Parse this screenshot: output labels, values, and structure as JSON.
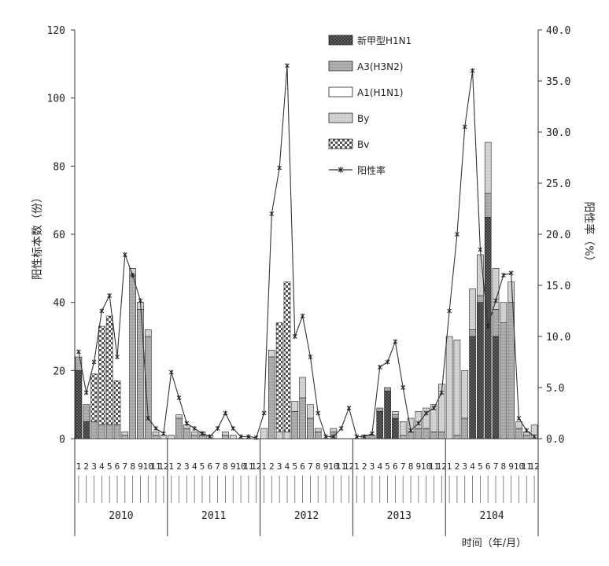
{
  "chart_data": {
    "type": "bar",
    "stacked": true,
    "xlabel": "时间（年/月）",
    "ylabel_left": "阳性标本数（份）",
    "ylabel_right": "阳性率（%）",
    "ylim_left": [
      0,
      120
    ],
    "yticks_left": [
      "0",
      "20",
      "40",
      "60",
      "80",
      "100",
      "120"
    ],
    "ylim_right": [
      0,
      40
    ],
    "yticks_right": [
      "0.0",
      "5.0",
      "10.0",
      "15.0",
      "20.0",
      "25.0",
      "30.0",
      "35.0",
      "40.0"
    ],
    "grid": false,
    "legend_position": "top-center",
    "month_labels": [
      "1",
      "2",
      "3",
      "4",
      "5",
      "6",
      "7",
      "8",
      "9",
      "10",
      "11",
      "12"
    ],
    "years": [
      "2010",
      "2011",
      "2012",
      "2013",
      "2104"
    ],
    "bar_series": [
      {
        "name": "新甲型H1N1",
        "color": "#6e6e6e",
        "pattern": "dark",
        "values": [
          20,
          5,
          0,
          0,
          0,
          0,
          0,
          0,
          0,
          0,
          0,
          0,
          0,
          0,
          0,
          0,
          0,
          0,
          0,
          0,
          0,
          0,
          0,
          0,
          0,
          0,
          0,
          0,
          0,
          0,
          0,
          0,
          0,
          0,
          0,
          0,
          0,
          0,
          0,
          8,
          14,
          6,
          0,
          0,
          0,
          0,
          0,
          0,
          0,
          0,
          0,
          30,
          40,
          65,
          30,
          0,
          0,
          0,
          0,
          0
        ]
      },
      {
        "name": "A3(H3N2)",
        "color": "#a8a8a8",
        "pattern": "medium",
        "values": [
          4,
          5,
          5,
          4,
          4,
          4,
          1,
          48,
          38,
          30,
          1,
          0,
          0,
          6,
          3,
          1,
          1,
          0,
          0,
          1,
          0,
          0,
          0,
          0,
          0,
          24,
          0,
          0,
          8,
          12,
          6,
          2,
          0,
          2,
          0,
          0,
          0,
          0,
          1,
          1,
          1,
          1,
          1,
          2,
          3,
          3,
          2,
          2,
          0,
          1,
          6,
          2,
          2,
          7,
          8,
          34,
          40,
          3,
          1,
          0
        ]
      },
      {
        "name": "A1(H1N1)",
        "color": "#ffffff",
        "pattern": "white",
        "values": [
          0,
          0,
          0,
          0,
          0,
          0,
          0,
          0,
          0,
          0,
          0,
          0,
          0,
          0,
          0,
          0,
          0,
          0,
          0,
          0,
          0,
          0,
          0,
          0,
          0,
          0,
          0,
          0,
          0,
          0,
          0,
          0,
          0,
          0,
          0,
          0,
          0,
          0,
          0,
          0,
          0,
          0,
          0,
          0,
          0,
          0,
          0,
          0,
          0,
          0,
          0,
          0,
          0,
          0,
          0,
          0,
          0,
          0,
          0,
          0
        ]
      },
      {
        "name": "By",
        "color": "#cccccc",
        "pattern": "light",
        "values": [
          0,
          0,
          0,
          0,
          0,
          0,
          1,
          2,
          2,
          2,
          1,
          1,
          1,
          1,
          1,
          1,
          1,
          1,
          0,
          1,
          1,
          0,
          0,
          0,
          3,
          2,
          2,
          2,
          3,
          6,
          4,
          1,
          0,
          1,
          0,
          0,
          0,
          1,
          0,
          0,
          0,
          1,
          4,
          4,
          5,
          6,
          8,
          14,
          30,
          28,
          14,
          12,
          12,
          15,
          12,
          6,
          6,
          2,
          1,
          4
        ]
      },
      {
        "name": "Bv",
        "color": "#d8d8d8",
        "pattern": "check",
        "values": [
          0,
          0,
          14,
          29,
          32,
          13,
          0,
          0,
          0,
          0,
          0,
          0,
          0,
          0,
          0,
          0,
          0,
          0,
          0,
          0,
          0,
          0,
          0,
          0,
          0,
          0,
          32,
          44,
          0,
          0,
          0,
          0,
          0,
          0,
          0,
          0,
          0,
          0,
          0,
          0,
          0,
          0,
          0,
          0,
          0,
          0,
          0,
          0,
          0,
          0,
          0,
          0,
          0,
          0,
          0,
          0,
          0,
          0,
          0,
          0
        ]
      }
    ],
    "line_series": {
      "name": "阳性率",
      "axis": "right",
      "values": [
        8.5,
        4.5,
        7.5,
        12.5,
        14.0,
        8.0,
        18.0,
        16.0,
        13.5,
        2.0,
        1.0,
        0.5,
        6.5,
        4.0,
        1.5,
        1.0,
        0.5,
        0.2,
        1.0,
        2.5,
        1.0,
        0.2,
        0.2,
        0.1,
        2.5,
        22.0,
        26.5,
        36.5,
        10.0,
        12.0,
        8.0,
        2.5,
        0.2,
        0.2,
        1.0,
        3.0,
        0.2,
        0.2,
        0.5,
        7.0,
        7.5,
        9.5,
        5.0,
        0.8,
        1.5,
        2.5,
        3.0,
        4.5,
        12.5,
        20.0,
        30.5,
        36.0,
        18.5,
        11.0,
        13.5,
        16.0,
        16.2,
        2.0,
        0.8,
        0.2
      ]
    }
  }
}
